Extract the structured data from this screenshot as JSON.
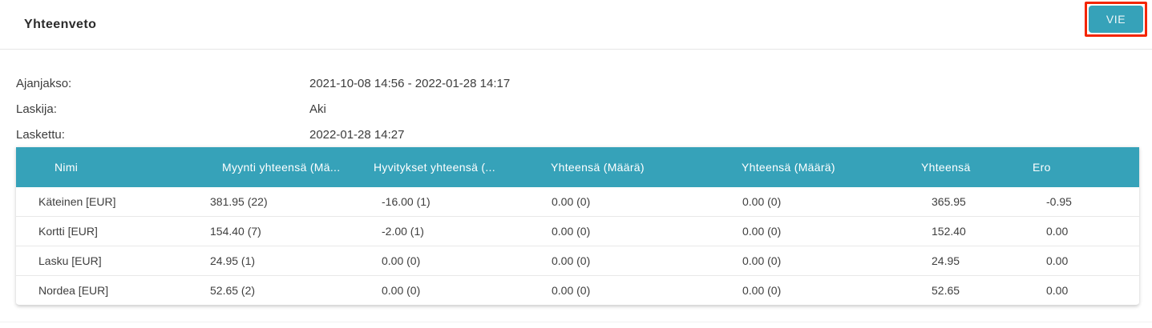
{
  "header": {
    "title": "Yhteenveto",
    "export_label": "VIE"
  },
  "meta": {
    "rows": [
      {
        "label": "Ajanjakso:",
        "value": "2021-10-08 14:56 - 2022-01-28 14:17"
      },
      {
        "label": "Laskija:",
        "value": "Aki"
      },
      {
        "label": "Laskettu:",
        "value": "2022-01-28 14:27"
      }
    ]
  },
  "table": {
    "columns": [
      "Nimi",
      "Myynti yhteensä (Mä...",
      "Hyvitykset yhteensä (...",
      "Yhteensä (Määrä)",
      "Yhteensä (Määrä)",
      "Yhteensä",
      "Ero"
    ],
    "rows": [
      [
        "Käteinen [EUR]",
        "381.95 (22)",
        "-16.00 (1)",
        "0.00 (0)",
        "0.00 (0)",
        "365.95",
        "-0.95"
      ],
      [
        "Kortti [EUR]",
        "154.40 (7)",
        "-2.00 (1)",
        "0.00 (0)",
        "0.00 (0)",
        "152.40",
        "0.00"
      ],
      [
        "Lasku [EUR]",
        "24.95 (1)",
        "0.00 (0)",
        "0.00 (0)",
        "0.00 (0)",
        "24.95",
        "0.00"
      ],
      [
        "Nordea [EUR]",
        "52.65 (2)",
        "0.00 (0)",
        "0.00 (0)",
        "0.00 (0)",
        "52.65",
        "0.00"
      ]
    ]
  },
  "colors": {
    "accent_teal": "#36a2b9",
    "annotation_red": "#f42500",
    "divider": "#e7e7e7"
  }
}
